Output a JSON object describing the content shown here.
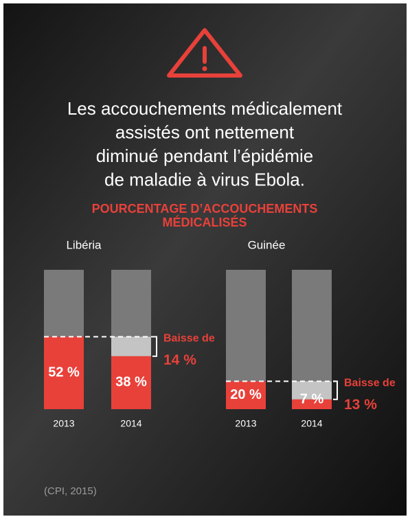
{
  "headline": [
    "Les accouchements médicalement",
    "assistés ont nettement",
    "diminué pendant l’épidémie",
    "de maladie à virus Ebola."
  ],
  "subtitle": [
    "POURCENTAGE D’ACCOUCHEMENTS",
    "MÉDICALISÉS"
  ],
  "source": "(CPI, 2015)",
  "chart_data": [
    {
      "type": "bar",
      "title": "Libéria",
      "categories": [
        "2013",
        "2014"
      ],
      "values": [
        52,
        38
      ],
      "value_labels": [
        "52 %",
        "38 %"
      ],
      "ylim": [
        0,
        100
      ],
      "color": "#e8413a",
      "track_color": "#7a7a7a",
      "drop_color": "#c4c4c4",
      "drop": {
        "text": "Baisse de",
        "value": 14,
        "value_label": "14 %"
      }
    },
    {
      "type": "bar",
      "title": "Guinée",
      "categories": [
        "2013",
        "2014"
      ],
      "values": [
        20,
        7
      ],
      "value_labels": [
        "20 %",
        "7 %"
      ],
      "ylim": [
        0,
        100
      ],
      "color": "#e8413a",
      "track_color": "#7a7a7a",
      "drop_color": "#c4c4c4",
      "drop": {
        "text": "Baisse de",
        "value": 13,
        "value_label": "13 %"
      }
    }
  ]
}
